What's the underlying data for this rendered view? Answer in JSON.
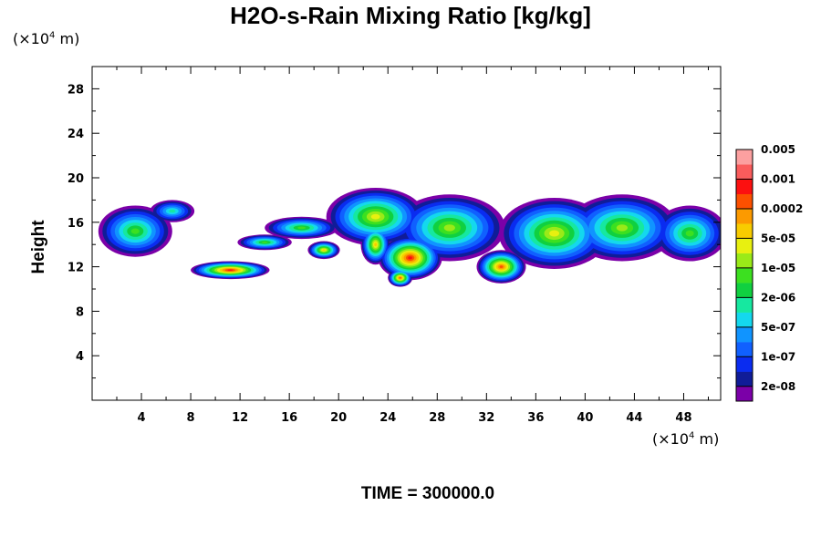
{
  "chart_data": {
    "type": "heatmap",
    "title": "H2O-s-Rain Mixing Ratio [kg/kg]",
    "ylabel": "Height",
    "xlabel": "",
    "x_unit_prefix": "(×10",
    "x_unit_exp": "4",
    "x_unit_suffix": " m)",
    "y_unit_prefix": "(×10",
    "y_unit_exp": "4",
    "y_unit_suffix": " m)",
    "xlim": [
      0,
      51
    ],
    "ylim": [
      0,
      30
    ],
    "x_ticks": [
      4,
      8,
      12,
      16,
      20,
      24,
      28,
      32,
      36,
      40,
      44,
      48
    ],
    "y_ticks": [
      4,
      8,
      12,
      16,
      20,
      24,
      28
    ],
    "colorbar": {
      "colors": [
        "#7b00a8",
        "#101c98",
        "#0a2cf0",
        "#1060ff",
        "#1094ff",
        "#14d8ee",
        "#16e8a0",
        "#10d040",
        "#3ce020",
        "#9aea18",
        "#e8f010",
        "#f8cc00",
        "#fc9a00",
        "#fc5000",
        "#fc1010",
        "#fa5c5c",
        "#fca0a0"
      ],
      "labels": [
        "2e-08",
        "1e-07",
        "5e-07",
        "2e-06",
        "1e-05",
        "5e-05",
        "0.0002",
        "0.001",
        "0.005"
      ]
    },
    "blobs": [
      {
        "x": 3.5,
        "y": 15.2,
        "rx": 3.0,
        "ry": 2.3,
        "levels": 9
      },
      {
        "x": 6.5,
        "y": 17.0,
        "rx": 1.8,
        "ry": 1.0,
        "levels": 7
      },
      {
        "x": 11.2,
        "y": 11.7,
        "rx": 3.2,
        "ry": 0.8,
        "levels": 15
      },
      {
        "x": 14.0,
        "y": 14.2,
        "rx": 2.2,
        "ry": 0.7,
        "levels": 9
      },
      {
        "x": 17.0,
        "y": 15.5,
        "rx": 3.0,
        "ry": 1.0,
        "levels": 9
      },
      {
        "x": 18.8,
        "y": 13.5,
        "rx": 1.3,
        "ry": 0.8,
        "levels": 12
      },
      {
        "x": 23.0,
        "y": 16.5,
        "rx": 4.0,
        "ry": 2.6,
        "levels": 11
      },
      {
        "x": 23.0,
        "y": 14.0,
        "rx": 1.2,
        "ry": 1.8,
        "levels": 12
      },
      {
        "x": 25.8,
        "y": 12.8,
        "rx": 2.6,
        "ry": 2.0,
        "levels": 15
      },
      {
        "x": 25.0,
        "y": 11.0,
        "rx": 1.0,
        "ry": 0.8,
        "levels": 14
      },
      {
        "x": 29.0,
        "y": 15.5,
        "rx": 4.5,
        "ry": 3.0,
        "levels": 10
      },
      {
        "x": 33.2,
        "y": 12.0,
        "rx": 2.0,
        "ry": 1.5,
        "levels": 14
      },
      {
        "x": 37.5,
        "y": 15.0,
        "rx": 4.5,
        "ry": 3.2,
        "levels": 11
      },
      {
        "x": 43.0,
        "y": 15.5,
        "rx": 4.5,
        "ry": 3.0,
        "levels": 10
      },
      {
        "x": 48.5,
        "y": 15.0,
        "rx": 3.0,
        "ry": 2.5,
        "levels": 9
      }
    ]
  },
  "footer": "TIME = 300000.0"
}
